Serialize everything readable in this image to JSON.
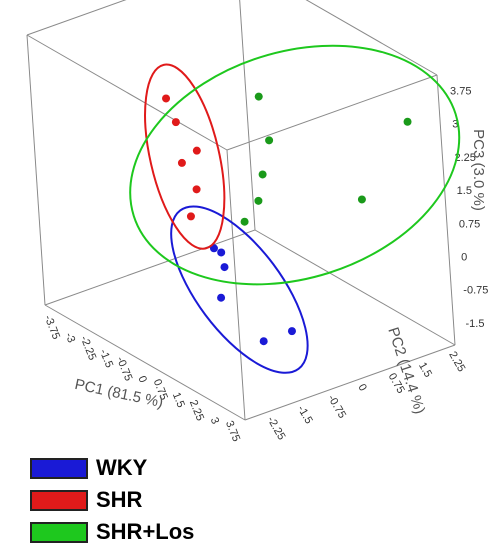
{
  "chart_data": {
    "type": "scatter",
    "xlabel": "PC1 (81.5 %)",
    "ylabel": "PC2 (14.4 %)",
    "zlabel": "PC3 (3.0 %)",
    "xticks": [
      "-3.75",
      "-3",
      "-2.25",
      "-1.5",
      "-0.75",
      "0",
      "0.75",
      "1.5",
      "2.25",
      "3",
      "3.75"
    ],
    "yticks": [
      "-2.25",
      "-1.5",
      "-0.75",
      "0",
      "0.75",
      "1.5",
      "2.25"
    ],
    "zticks": [
      "-1.5",
      "-0.75",
      "0",
      "0.75",
      "1.5",
      "2.25",
      "3",
      "3.75"
    ],
    "grid": false,
    "legend_position": "bottom-left",
    "series": [
      {
        "name": "WKY",
        "color": "#1a1ad6",
        "points": [
          {
            "x": 0.6,
            "y": -1.0,
            "z": 0.2
          },
          {
            "x": 0.9,
            "y": -1.0,
            "z": 0.2
          },
          {
            "x": 1.0,
            "y": -1.0,
            "z": -0.1
          },
          {
            "x": 1.3,
            "y": -1.3,
            "z": -0.6
          },
          {
            "x": 2.3,
            "y": -0.2,
            "z": -1.4
          },
          {
            "x": 2.3,
            "y": -0.9,
            "z": -1.4
          }
        ]
      },
      {
        "name": "SHR",
        "color": "#e01a1a",
        "points": [
          {
            "x": -3.0,
            "y": 0.1,
            "z": 2.1
          },
          {
            "x": -3.0,
            "y": 0.3,
            "z": 1.5
          },
          {
            "x": -2.5,
            "y": 0.1,
            "z": 0.8
          },
          {
            "x": -2.0,
            "y": 0.2,
            "z": 1.2
          },
          {
            "x": -2.3,
            "y": 0.3,
            "z": 0.2
          },
          {
            "x": -2.8,
            "y": 0.4,
            "z": -0.6
          }
        ]
      },
      {
        "name": "SHR+Los",
        "color": "#1a9a1a",
        "points": [
          {
            "x": -0.6,
            "y": 1.0,
            "z": 2.6
          },
          {
            "x": -0.1,
            "y": 0.9,
            "z": 1.8
          },
          {
            "x": -0.3,
            "y": 0.8,
            "z": 1.0
          },
          {
            "x": -0.2,
            "y": 0.6,
            "z": 0.5
          },
          {
            "x": -0.5,
            "y": 0.4,
            "z": 0.0
          },
          {
            "x": 3.2,
            "y": 1.2,
            "z": 1.4
          },
          {
            "x": 4.5,
            "y": 1.7,
            "z": 3.4
          }
        ]
      }
    ]
  },
  "legend": {
    "items": [
      {
        "label": "WKY",
        "color": "#1a1ad6"
      },
      {
        "label": "SHR",
        "color": "#e01a1a"
      },
      {
        "label": "SHR+Los",
        "color": "#1ec81e"
      }
    ]
  }
}
